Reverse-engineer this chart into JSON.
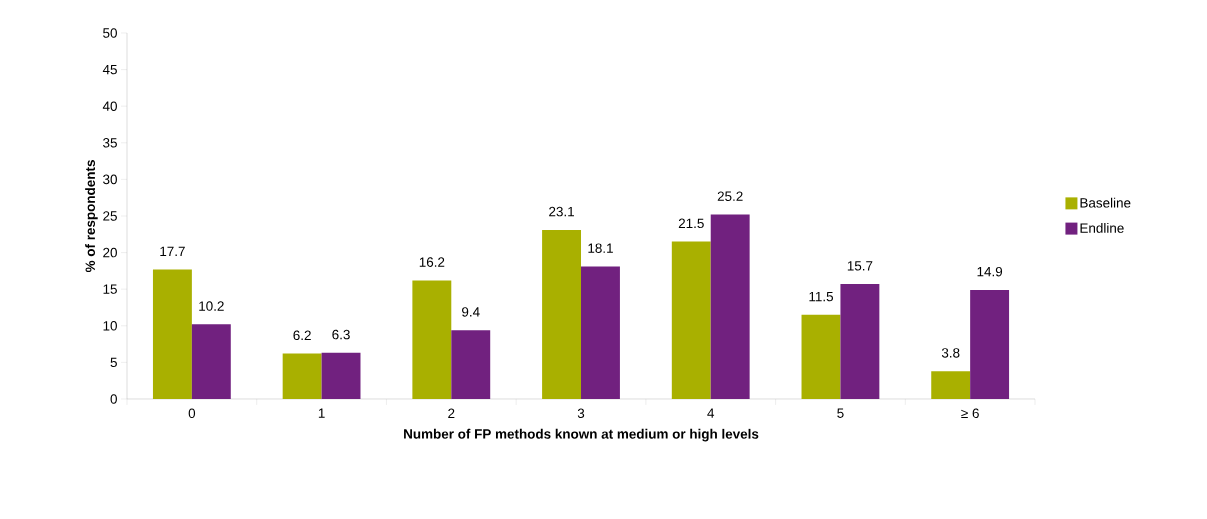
{
  "chart_data": {
    "type": "bar",
    "xlabel": "Number of FP methods known at medium or high levels",
    "ylabel": "% of respondents",
    "categories": [
      "0",
      "1",
      "2",
      "3",
      "4",
      "5",
      "≥ 6"
    ],
    "series": [
      {
        "name": "Baseline",
        "color": "#a9b000",
        "values": [
          17.7,
          6.2,
          16.2,
          23.1,
          21.5,
          11.5,
          3.8
        ]
      },
      {
        "name": "Endline",
        "color": "#71217f",
        "values": [
          10.2,
          6.3,
          9.4,
          18.1,
          25.2,
          15.7,
          14.9
        ]
      }
    ],
    "ylim": [
      0,
      50
    ],
    "yticks": [
      0,
      5,
      10,
      15,
      20,
      25,
      30,
      35,
      40,
      45,
      50
    ],
    "data_labels": true,
    "legend": "right",
    "grid": false
  }
}
